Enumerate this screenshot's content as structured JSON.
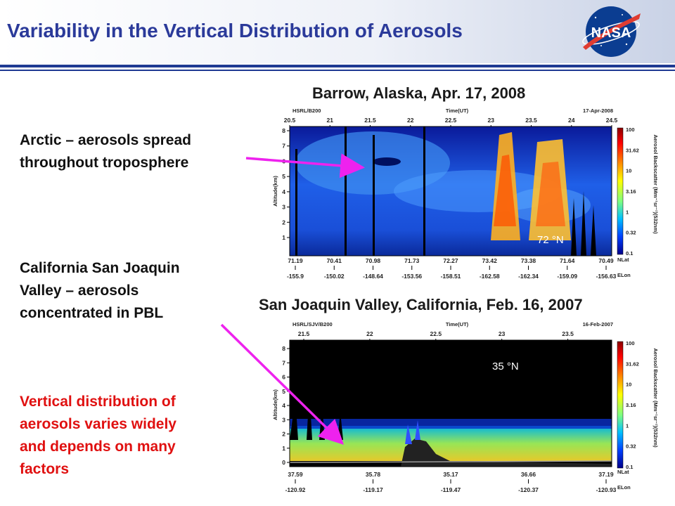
{
  "slide": {
    "title": "Variability in the Vertical Distribution of Aerosols",
    "logo_text": "NASA"
  },
  "left_text": {
    "arctic": [
      "Arctic – aerosols spread",
      "throughout troposphere"
    ],
    "california": [
      "California San Joaquin",
      "Valley – aerosols",
      "concentrated in PBL"
    ],
    "conclusion": [
      "Vertical distribution of",
      "aerosols varies widely",
      "and depends on many",
      "factors"
    ]
  },
  "colors": {
    "title": "#2b3a9a",
    "conclusion": "#e01010",
    "arrow": "#ee22ee",
    "rule": "#1f3a93"
  },
  "plot1": {
    "title": "Barrow, Alaska, Apr. 17, 2008",
    "header_left": "HSRL/B200",
    "header_center": "Time(UT)",
    "header_right": "17-Apr-2008",
    "time_ticks": [
      "20.5",
      "21",
      "21.5",
      "22",
      "22.5",
      "23",
      "23.5",
      "24",
      "24.5"
    ],
    "ylabel": "Altitude(km)",
    "y_ticks": [
      "1",
      "2",
      "3",
      "4",
      "5",
      "6",
      "7",
      "8"
    ],
    "nlat": [
      "71.19",
      "70.41",
      "70.98",
      "71.73",
      "72.27",
      "73.42",
      "73.38",
      "71.64",
      "70.49"
    ],
    "elon": [
      "-155.9",
      "-150.02",
      "-148.64",
      "-153.56",
      "-158.51",
      "-162.58",
      "-162.34",
      "-159.09",
      "-156.63"
    ],
    "nlat_label": "NLat",
    "elon_label": "ELon",
    "colorbar_ticks": [
      "100",
      "31.62",
      "10",
      "3.16",
      "1",
      "0.32",
      "0.1"
    ],
    "colorbar_label": "Aerosol Backscatter (Mm⁻¹sr⁻¹)(532nm)",
    "latitude_label": "72 °N"
  },
  "plot2": {
    "title": "San Joaquin Valley, California, Feb. 16, 2007",
    "header_left": "HSRL/SJV/B200",
    "header_center": "Time(UT)",
    "header_right": "16-Feb-2007",
    "time_ticks": [
      "21.5",
      "22",
      "22.5",
      "23",
      "23.5"
    ],
    "ylabel": "Altitude(km)",
    "y_ticks": [
      "0",
      "1",
      "2",
      "3",
      "4",
      "5",
      "6",
      "7",
      "8"
    ],
    "nlat": [
      "37.59",
      "35.78",
      "35.17",
      "36.66",
      "37.19"
    ],
    "elon": [
      "-120.92",
      "-119.17",
      "-119.47",
      "-120.37",
      "-120.93"
    ],
    "nlat_label": "NLat",
    "elon_label": "ELon",
    "colorbar_ticks": [
      "100",
      "31.62",
      "10",
      "3.16",
      "1",
      "0.32",
      "0.1"
    ],
    "colorbar_label": "Aerosol Backscatter (Mm⁻¹sr⁻¹)(532nm)",
    "latitude_label": "35 °N"
  }
}
